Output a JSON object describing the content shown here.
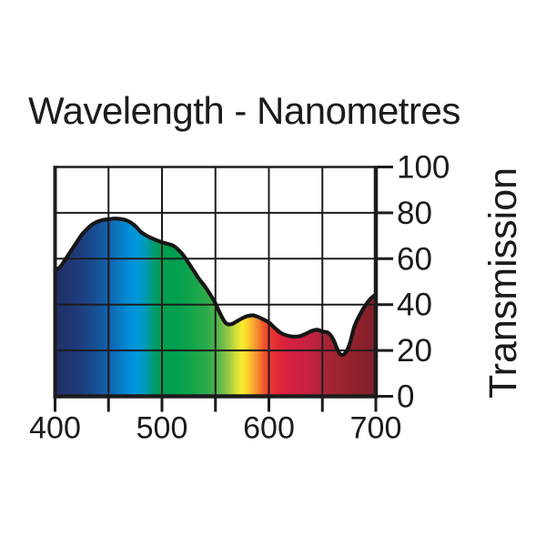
{
  "title": "Wavelength - Nanometres",
  "chart_data": {
    "type": "area",
    "title": "Wavelength - Nanometres",
    "xlabel": "Wavelength - Nanometres",
    "ylabel": "Transmission",
    "xlim": [
      400,
      700
    ],
    "ylim": [
      0,
      100
    ],
    "x_ticks": [
      400,
      450,
      500,
      550,
      600,
      650,
      700
    ],
    "x_labeled_ticks": [
      400,
      500,
      600,
      700
    ],
    "x_tick_labels": [
      "400",
      "500",
      "600",
      "700"
    ],
    "y_ticks": [
      0,
      20,
      40,
      60,
      80,
      100
    ],
    "y_tick_labels": [
      "0",
      "20",
      "40",
      "60",
      "80",
      "100"
    ],
    "grid": true,
    "legend": "none",
    "series": [
      {
        "name": "Transmission (%)",
        "x": [
          400,
          405,
          410,
          415,
          420,
          425,
          430,
          435,
          440,
          445,
          450,
          455,
          460,
          465,
          470,
          475,
          480,
          485,
          490,
          495,
          500,
          505,
          510,
          515,
          520,
          525,
          530,
          535,
          540,
          545,
          550,
          555,
          560,
          565,
          570,
          575,
          580,
          585,
          590,
          595,
          600,
          605,
          610,
          615,
          620,
          625,
          630,
          635,
          640,
          645,
          650,
          655,
          658,
          661,
          664,
          667,
          670,
          673,
          676,
          680,
          685,
          690,
          695,
          700
        ],
        "y": [
          55,
          56.5,
          60,
          63.5,
          67,
          70.5,
          73,
          75,
          76.2,
          76.9,
          77.2,
          77.5,
          77.4,
          77,
          76,
          74.3,
          71.8,
          70.2,
          69,
          68,
          67.2,
          66.5,
          65.8,
          64,
          61.5,
          58,
          54.5,
          51,
          48,
          44.5,
          40.5,
          35.5,
          31.8,
          31.5,
          32.7,
          34,
          35,
          35.3,
          34.6,
          33.5,
          32.2,
          30,
          28,
          26.8,
          26.2,
          26,
          26.4,
          27.4,
          28.5,
          29,
          28.3,
          27.8,
          26.5,
          24,
          20.5,
          18.2,
          18.3,
          20,
          23.5,
          30.5,
          35.5,
          39.5,
          42.5,
          44.5
        ]
      }
    ],
    "area_fill": "visible-light-spectrum-gradient",
    "spectrum_gradient_stops": [
      {
        "nm": 400,
        "color": "#232e68"
      },
      {
        "nm": 412,
        "color": "#20356f"
      },
      {
        "nm": 425,
        "color": "#1d3e7e"
      },
      {
        "nm": 437,
        "color": "#184e93"
      },
      {
        "nm": 448,
        "color": "#135fa8"
      },
      {
        "nm": 458,
        "color": "#0d74bf"
      },
      {
        "nm": 468,
        "color": "#028cd5"
      },
      {
        "nm": 477,
        "color": "#0098dd"
      },
      {
        "nm": 485,
        "color": "#009bb4"
      },
      {
        "nm": 493,
        "color": "#009b6a"
      },
      {
        "nm": 500,
        "color": "#009d52"
      },
      {
        "nm": 515,
        "color": "#01a04e"
      },
      {
        "nm": 530,
        "color": "#16a64c"
      },
      {
        "nm": 543,
        "color": "#2fab4b"
      },
      {
        "nm": 553,
        "color": "#57b64a"
      },
      {
        "nm": 562,
        "color": "#96c847"
      },
      {
        "nm": 569,
        "color": "#d2de3a"
      },
      {
        "nm": 575,
        "color": "#f9ee2d"
      },
      {
        "nm": 580,
        "color": "#fcd32e"
      },
      {
        "nm": 586,
        "color": "#f8a331"
      },
      {
        "nm": 591,
        "color": "#f57b2f"
      },
      {
        "nm": 596,
        "color": "#f0512c"
      },
      {
        "nm": 601,
        "color": "#e93a2e"
      },
      {
        "nm": 609,
        "color": "#e12737"
      },
      {
        "nm": 618,
        "color": "#d8203f"
      },
      {
        "nm": 628,
        "color": "#d02041"
      },
      {
        "nm": 638,
        "color": "#c42241"
      },
      {
        "nm": 648,
        "color": "#b2233e"
      },
      {
        "nm": 656,
        "color": "#a32434"
      },
      {
        "nm": 668,
        "color": "#9a232e"
      },
      {
        "nm": 682,
        "color": "#8e212a"
      },
      {
        "nm": 700,
        "color": "#81202b"
      }
    ],
    "line_color": "#161616",
    "grid_color": "#1c1c1c",
    "text_color": "#1b1b1b",
    "background_color": "#ffffff"
  }
}
